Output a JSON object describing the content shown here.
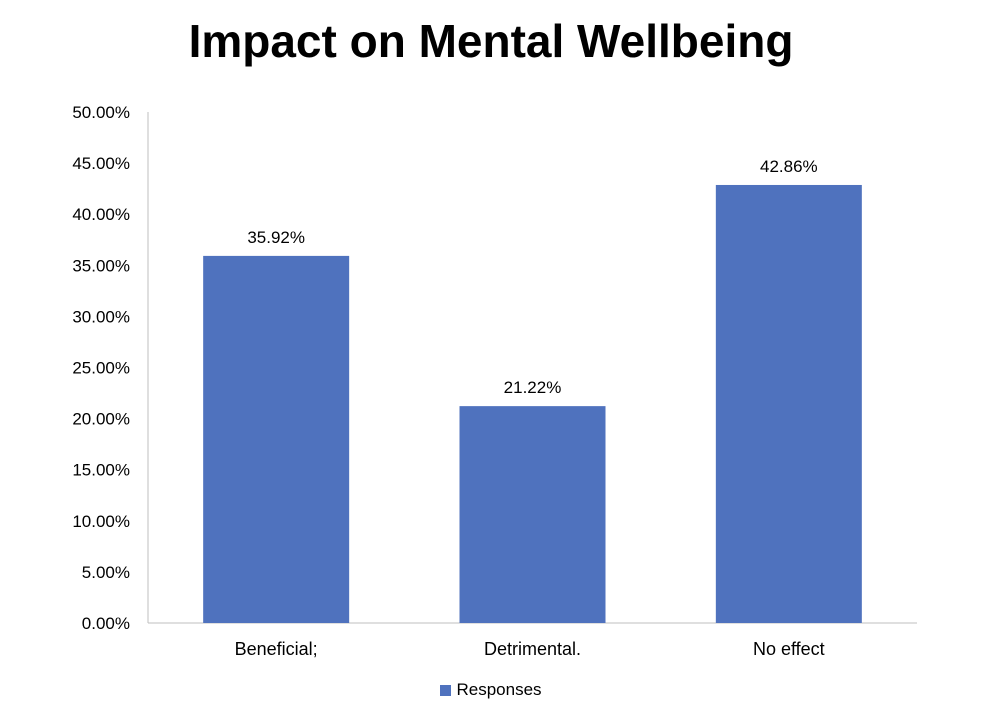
{
  "chart_data": {
    "type": "bar",
    "title": "Impact on Mental Wellbeing",
    "categories": [
      "Beneficial;",
      "Detrimental.",
      "No effect"
    ],
    "series": [
      {
        "name": "Responses",
        "values": [
          35.92,
          21.22,
          42.86
        ],
        "color": "#4F72BE"
      }
    ],
    "data_labels": [
      "35.92%",
      "21.22%",
      "42.86%"
    ],
    "ylim": [
      0,
      50
    ],
    "y_ticks": [
      0,
      5,
      10,
      15,
      20,
      25,
      30,
      35,
      40,
      45,
      50
    ],
    "y_tick_labels": [
      "0.00%",
      "5.00%",
      "10.00%",
      "15.00%",
      "20.00%",
      "25.00%",
      "30.00%",
      "35.00%",
      "40.00%",
      "45.00%",
      "50.00%"
    ],
    "grid": false,
    "legend_position": "bottom"
  }
}
